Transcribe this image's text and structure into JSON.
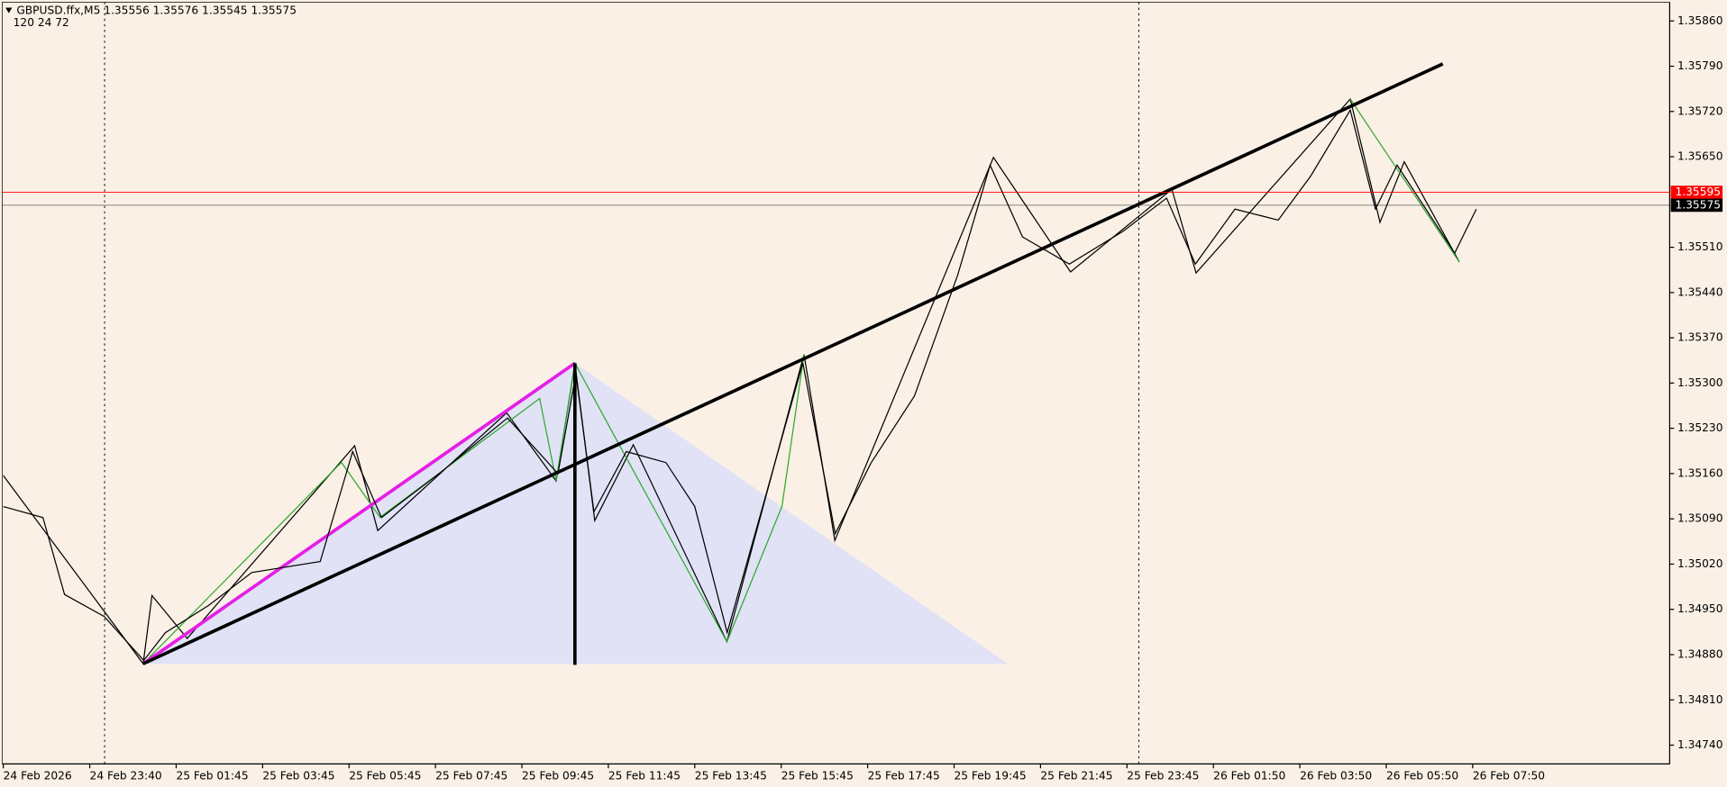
{
  "chart_data": {
    "type": "line",
    "header": "GBPUSD.ffx,M5  1.35556 1.35576 1.35545 1.35575",
    "subheader": "120  24  72",
    "x": [
      0,
      11,
      17,
      28,
      39,
      45,
      57,
      69,
      88,
      97,
      105,
      121,
      140,
      154,
      159,
      164,
      173,
      184,
      192,
      201,
      210,
      222,
      231,
      241,
      253,
      265,
      274,
      283,
      296,
      311,
      323,
      331,
      342,
      354,
      363,
      374,
      381,
      387,
      403,
      409
    ],
    "series": [
      {
        "color": "#000000",
        "values": [
          1.35109,
          1.35092,
          1.34973,
          1.34939,
          1.34871,
          1.34914,
          1.34956,
          1.35007,
          1.35024,
          1.35194,
          1.35092,
          1.3516,
          1.35246,
          1.3516,
          1.35314,
          1.35101,
          1.35194,
          1.35177,
          1.35109,
          1.34914,
          1.35092,
          1.35331,
          1.35067,
          1.35177,
          1.3528,
          1.35467,
          1.35637,
          1.35526,
          1.35484,
          1.35535,
          1.35586,
          1.35484,
          1.35569,
          1.35552,
          1.3562,
          1.35722,
          1.35569,
          1.35637,
          1.35501,
          1.35569
        ]
      }
    ],
    "xlim": [
      0,
      463
    ],
    "xticks": [
      {
        "value": 0,
        "label": "24 Feb 2026"
      },
      {
        "value": 24,
        "label": "24 Feb 23:40"
      },
      {
        "value": 48,
        "label": "25 Feb 01:45"
      },
      {
        "value": 72,
        "label": "25 Feb 03:45"
      },
      {
        "value": 96,
        "label": "25 Feb 05:45"
      },
      {
        "value": 120,
        "label": "25 Feb 07:45"
      },
      {
        "value": 144,
        "label": "25 Feb 09:45"
      },
      {
        "value": 168,
        "label": "25 Feb 11:45"
      },
      {
        "value": 192,
        "label": "25 Feb 13:45"
      },
      {
        "value": 216,
        "label": "25 Feb 15:45"
      },
      {
        "value": 240,
        "label": "25 Feb 17:45"
      },
      {
        "value": 264,
        "label": "25 Feb 19:45"
      },
      {
        "value": 288,
        "label": "25 Feb 21:45"
      },
      {
        "value": 312,
        "label": "25 Feb 23:45"
      },
      {
        "value": 336,
        "label": "26 Feb 01:50"
      },
      {
        "value": 360,
        "label": "26 Feb 03:50"
      },
      {
        "value": 384,
        "label": "26 Feb 05:50"
      },
      {
        "value": 408,
        "label": "26 Feb 07:50"
      }
    ],
    "ylim": [
      1.34711,
      1.35889
    ],
    "yticks": [
      {
        "value": 1.3586,
        "label": "1.35860"
      },
      {
        "value": 1.3579,
        "label": "1.35790"
      },
      {
        "value": 1.3572,
        "label": "1.35720"
      },
      {
        "value": 1.3565,
        "label": "1.35650"
      },
      {
        "value": 1.3551,
        "label": "1.35510"
      },
      {
        "value": 1.3544,
        "label": "1.35440"
      },
      {
        "value": 1.3537,
        "label": "1.35370"
      },
      {
        "value": 1.353,
        "label": "1.35300"
      },
      {
        "value": 1.3523,
        "label": "1.35230"
      },
      {
        "value": 1.3516,
        "label": "1.35160"
      },
      {
        "value": 1.3509,
        "label": "1.35090"
      },
      {
        "value": 1.3502,
        "label": "1.35020"
      },
      {
        "value": 1.3495,
        "label": "1.34950"
      },
      {
        "value": 1.3488,
        "label": "1.34880"
      },
      {
        "value": 1.3481,
        "label": "1.34810"
      },
      {
        "value": 1.3474,
        "label": "1.34740"
      }
    ],
    "price_lines": [
      {
        "value": 1.35595,
        "color": "#ff0000"
      },
      {
        "value": 1.35575,
        "color": "#000000"
      }
    ]
  }
}
